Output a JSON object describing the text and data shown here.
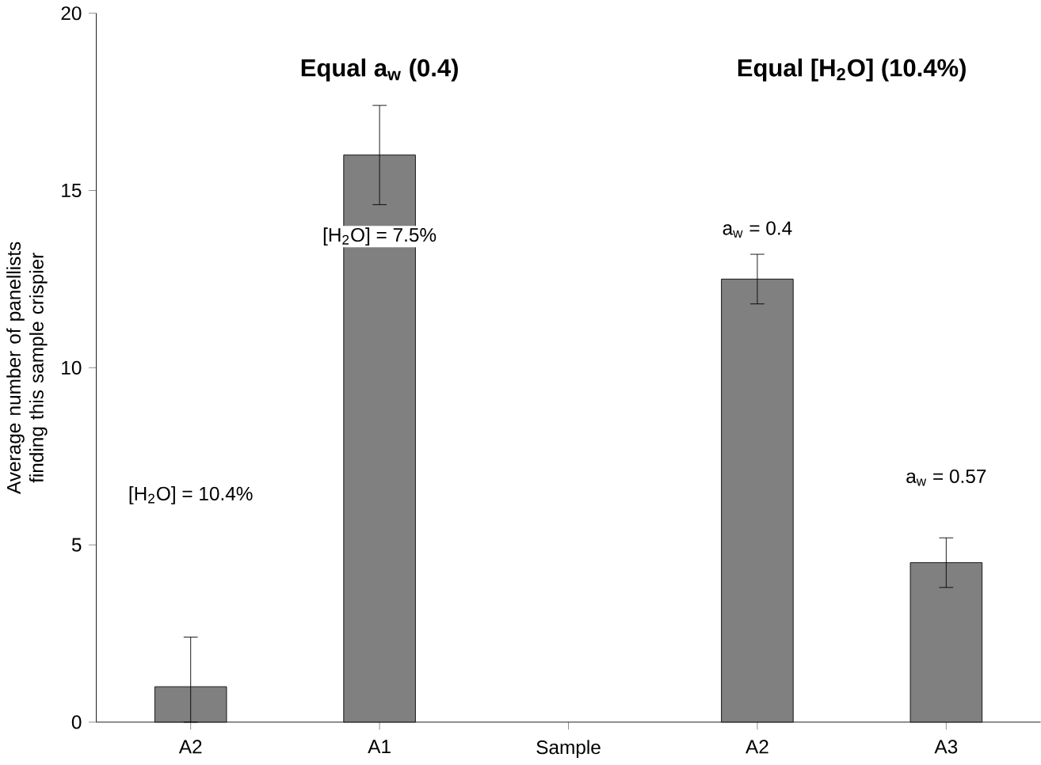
{
  "chart_data": {
    "type": "bar",
    "ylabel": "Average number of panellists finding this sample crispier",
    "categories": [
      "A2",
      "A1",
      "Sample",
      "A2",
      "A3"
    ],
    "values": [
      1,
      16,
      null,
      12.5,
      4.5
    ],
    "errors": [
      [
        0,
        2.4
      ],
      [
        14.6,
        17.4
      ],
      null,
      [
        11.8,
        13.2
      ],
      [
        3.8,
        5.2
      ]
    ],
    "color": "#808080",
    "ylim": [
      0,
      20
    ],
    "yticks": [
      0,
      5,
      10,
      15,
      20
    ],
    "annotations": [
      "Equal a$_{w}$ (0.4)",
      "Equal [H$_{2}$O] (10.4%)",
      "[H$_{2}$O] = 10.4%",
      "[H$_{2}$O] = 7.5%",
      "a$_{w}$ = 0.4",
      "a$_{w}$ = 0.57"
    ]
  }
}
